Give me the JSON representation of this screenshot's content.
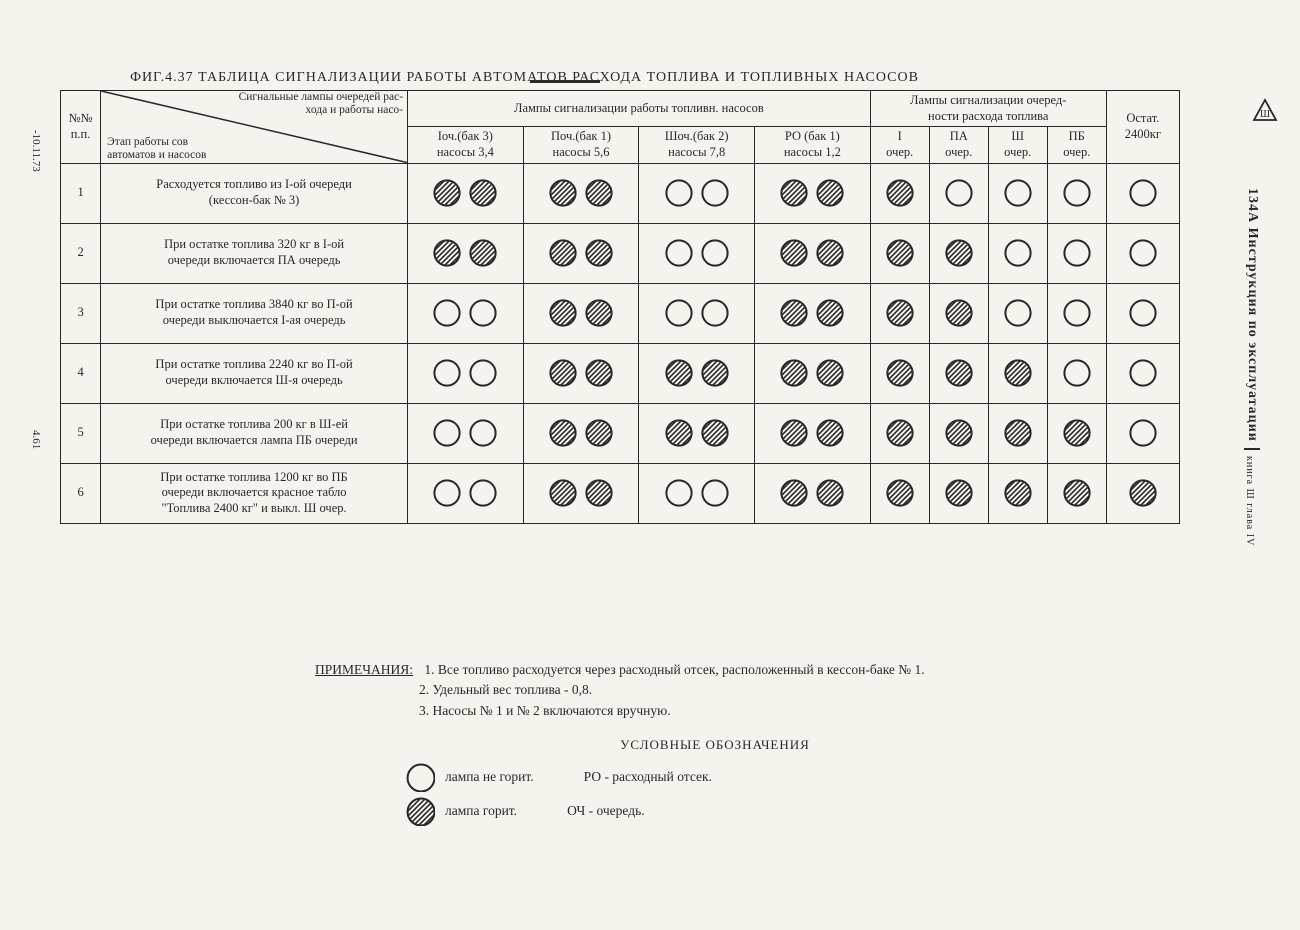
{
  "title": "ФИГ.4.37   ТАБЛИЦА   СИГНАЛИЗАЦИИ   РАБОТЫ   АВТОМАТОВ   РАСХОДА   ТОПЛИВА   И   ТОПЛИВНЫХ   НАСОСОВ",
  "header": {
    "num": "№№\nп.п.",
    "diag_top": "Сигнальные лампы очередей рас-\nхода и работы насо-",
    "diag_bot": "Этап работы            сов\nавтоматов и насосов",
    "group_pumps": "Лампы сигнализации работы топливн. насосов",
    "group_queues": "Лампы сигнализации очеред-\nности расхода топлива",
    "pump_cols": [
      "Iоч.(бак 3)\nнасосы 3,4",
      "Поч.(бак 1)\nнасосы 5,6",
      "Шоч.(бак 2)\nнасосы 7,8",
      "РО (бак 1)\nнасосы 1,2"
    ],
    "queue_cols": [
      "I\nочер.",
      "ПА\nочер.",
      "Ш\nочер.",
      "ПБ\nочер."
    ],
    "remain": "Остат.\n2400кг"
  },
  "rows": [
    {
      "n": "1",
      "desc": "Расходуется топливо из I-ой очереди\n(кессон-бак № 3)",
      "pumps": [
        [
          1,
          1
        ],
        [
          1,
          1
        ],
        [
          0,
          0
        ],
        [
          1,
          1
        ]
      ],
      "queues": [
        1,
        0,
        0,
        0
      ],
      "remain": 0
    },
    {
      "n": "2",
      "desc": "При остатке топлива 320 кг в I-ой\nочереди включается ПА очередь",
      "pumps": [
        [
          1,
          1
        ],
        [
          1,
          1
        ],
        [
          0,
          0
        ],
        [
          1,
          1
        ]
      ],
      "queues": [
        1,
        1,
        0,
        0
      ],
      "remain": 0
    },
    {
      "n": "3",
      "desc": "При остатке топлива 3840 кг во П-ой\nочереди выключается I-ая очередь",
      "pumps": [
        [
          0,
          0
        ],
        [
          1,
          1
        ],
        [
          0,
          0
        ],
        [
          1,
          1
        ]
      ],
      "queues": [
        1,
        1,
        0,
        0
      ],
      "remain": 0
    },
    {
      "n": "4",
      "desc": "При остатке топлива 2240 кг во П-ой\nочереди включается Ш-я очередь",
      "pumps": [
        [
          0,
          0
        ],
        [
          1,
          1
        ],
        [
          1,
          1
        ],
        [
          1,
          1
        ]
      ],
      "queues": [
        1,
        1,
        1,
        0
      ],
      "remain": 0
    },
    {
      "n": "5",
      "desc": "При остатке топлива 200 кг в Ш-ей\nочереди включается лампа ПБ очереди",
      "pumps": [
        [
          0,
          0
        ],
        [
          1,
          1
        ],
        [
          1,
          1
        ],
        [
          1,
          1
        ]
      ],
      "queues": [
        1,
        1,
        1,
        1
      ],
      "remain": 0
    },
    {
      "n": "6",
      "desc": "При остатке топлива 1200 кг во ПБ\nочереди включается красное табло\n\"Топлива 2400 кг\" и выкл. Ш очер.",
      "pumps": [
        [
          0,
          0
        ],
        [
          1,
          1
        ],
        [
          0,
          0
        ],
        [
          1,
          1
        ]
      ],
      "queues": [
        1,
        1,
        1,
        1
      ],
      "remain": 1
    }
  ],
  "notes": {
    "label": "ПРИМЕЧАНИЯ:",
    "items": [
      "1. Все топливо расходуется через расходный отсек, расположенный в кессон-баке № 1.",
      "2. Удельный вес топлива - 0,8.",
      "3. Насосы № 1 и № 2 включаются вручную."
    ]
  },
  "legend": {
    "title": "УСЛОВНЫЕ ОБОЗНАЧЕНИЯ",
    "off": "лампа не горит.",
    "on": "лампа горит.",
    "ro": "РО  - расходный отсек.",
    "och": "ОЧ - очередь."
  },
  "margins": {
    "right_main": "134А  Инструкция по эксплуатации",
    "right_sub": "книга Ш  глава IV",
    "left_top": "-10.11.73",
    "left_mid": "4.61"
  },
  "colors": {
    "ink": "#2a2825",
    "paper": "#f5f3ee"
  }
}
